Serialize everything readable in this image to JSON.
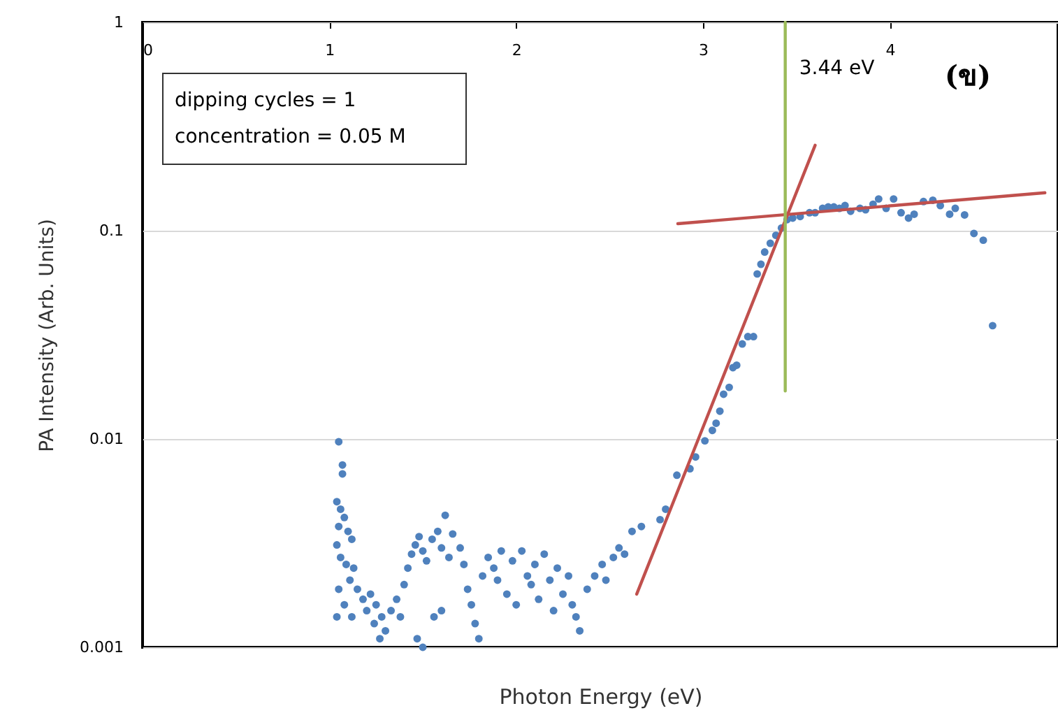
{
  "chart_data": {
    "type": "scatter",
    "xlabel": "Photon Energy (eV)",
    "ylabel": "PA Intensity (Arb. Units)",
    "log": true,
    "grid": "y",
    "xlim": [
      0,
      4.9
    ],
    "xticks": [
      0,
      1,
      2,
      3,
      4
    ],
    "ylim": [
      0.001,
      1
    ],
    "yticks": [
      0.001,
      0.01,
      0.1,
      1
    ],
    "annotations": [
      {
        "text": "3.44 eV",
        "x": 3.44,
        "y": 0.6
      },
      "dipping cycles = 1",
      "concentration = 0.05 M",
      "(ข)"
    ],
    "series": [
      {
        "marker": "circle",
        "color": "#4f81bd",
        "x": [
          1.05,
          1.07,
          1.07,
          1.04,
          1.06,
          1.08,
          1.05,
          1.1,
          1.04,
          1.12,
          1.06,
          1.09,
          1.13,
          1.05,
          1.11,
          1.15,
          1.08,
          1.18,
          1.04,
          1.12,
          1.2,
          1.22,
          1.25,
          1.28,
          1.24,
          1.3,
          1.27,
          1.33,
          1.36,
          1.38,
          1.4,
          1.42,
          1.44,
          1.46,
          1.48,
          1.5,
          1.52,
          1.47,
          1.5,
          1.55,
          1.58,
          1.6,
          1.62,
          1.64,
          1.66,
          1.56,
          1.6,
          1.7,
          1.72,
          1.74,
          1.76,
          1.78,
          1.8,
          1.82,
          1.85,
          1.88,
          1.9,
          1.92,
          1.95,
          1.98,
          2.0,
          2.03,
          2.06,
          2.08,
          2.1,
          2.12,
          2.15,
          2.18,
          2.2,
          2.22,
          2.25,
          2.28,
          2.3,
          2.32,
          2.34,
          2.38,
          2.42,
          2.46,
          2.48,
          2.52,
          2.55,
          2.58,
          2.62,
          2.67,
          2.77,
          2.8,
          2.86,
          2.93,
          2.96,
          3.01,
          3.05,
          3.07,
          3.09,
          3.11,
          3.14,
          3.16,
          3.18,
          3.21,
          3.24,
          3.27,
          3.29,
          3.31,
          3.33,
          3.36,
          3.39,
          3.42,
          3.45,
          3.48,
          3.52,
          3.57,
          3.6,
          3.64,
          3.67,
          3.7,
          3.73,
          3.76,
          3.79,
          3.84,
          3.87,
          3.91,
          3.94,
          3.98,
          4.02,
          4.06,
          4.1,
          4.13,
          4.18,
          4.23,
          4.27,
          4.32,
          4.35,
          4.4,
          4.45,
          4.5,
          4.55
        ],
        "values": [
          0.0097,
          0.0075,
          0.0068,
          0.005,
          0.0046,
          0.0042,
          0.0038,
          0.0036,
          0.0031,
          0.0033,
          0.0027,
          0.0025,
          0.0024,
          0.0019,
          0.0021,
          0.0019,
          0.0016,
          0.0017,
          0.0014,
          0.0014,
          0.0015,
          0.0018,
          0.0016,
          0.0014,
          0.0013,
          0.0012,
          0.0011,
          0.0015,
          0.0017,
          0.0014,
          0.002,
          0.0024,
          0.0028,
          0.0031,
          0.0034,
          0.0029,
          0.0026,
          0.0011,
          0.001,
          0.0033,
          0.0036,
          0.003,
          0.0043,
          0.0027,
          0.0035,
          0.0014,
          0.0015,
          0.003,
          0.0025,
          0.0019,
          0.0016,
          0.0013,
          0.0011,
          0.0022,
          0.0027,
          0.0024,
          0.0021,
          0.0029,
          0.0018,
          0.0026,
          0.0016,
          0.0029,
          0.0022,
          0.002,
          0.0025,
          0.0017,
          0.0028,
          0.0021,
          0.0015,
          0.0024,
          0.0018,
          0.0022,
          0.0016,
          0.0014,
          0.0012,
          0.0019,
          0.0022,
          0.0025,
          0.0021,
          0.0027,
          0.003,
          0.0028,
          0.0036,
          0.0038,
          0.0041,
          0.0046,
          0.0067,
          0.0072,
          0.0082,
          0.0098,
          0.011,
          0.0119,
          0.0136,
          0.0164,
          0.0177,
          0.022,
          0.0226,
          0.0286,
          0.031,
          0.031,
          0.062,
          0.069,
          0.079,
          0.087,
          0.095,
          0.103,
          0.113,
          0.115,
          0.117,
          0.122,
          0.122,
          0.128,
          0.13,
          0.13,
          0.128,
          0.132,
          0.124,
          0.128,
          0.126,
          0.134,
          0.142,
          0.128,
          0.142,
          0.122,
          0.115,
          0.12,
          0.138,
          0.14,
          0.132,
          0.12,
          0.128,
          0.119,
          0.097,
          0.09,
          0.035
        ]
      },
      {
        "type": "line",
        "color": "#c0504d",
        "x": [
          2.645,
          3.6
        ],
        "values": [
          0.0018,
          0.257
        ]
      },
      {
        "type": "line",
        "color": "#c0504d",
        "x": [
          2.865,
          4.83
        ],
        "values": [
          0.108,
          0.152
        ]
      },
      {
        "type": "line",
        "color": "#9bbb59",
        "x": [
          3.44,
          3.44
        ],
        "values": [
          1,
          0.017
        ]
      }
    ]
  }
}
